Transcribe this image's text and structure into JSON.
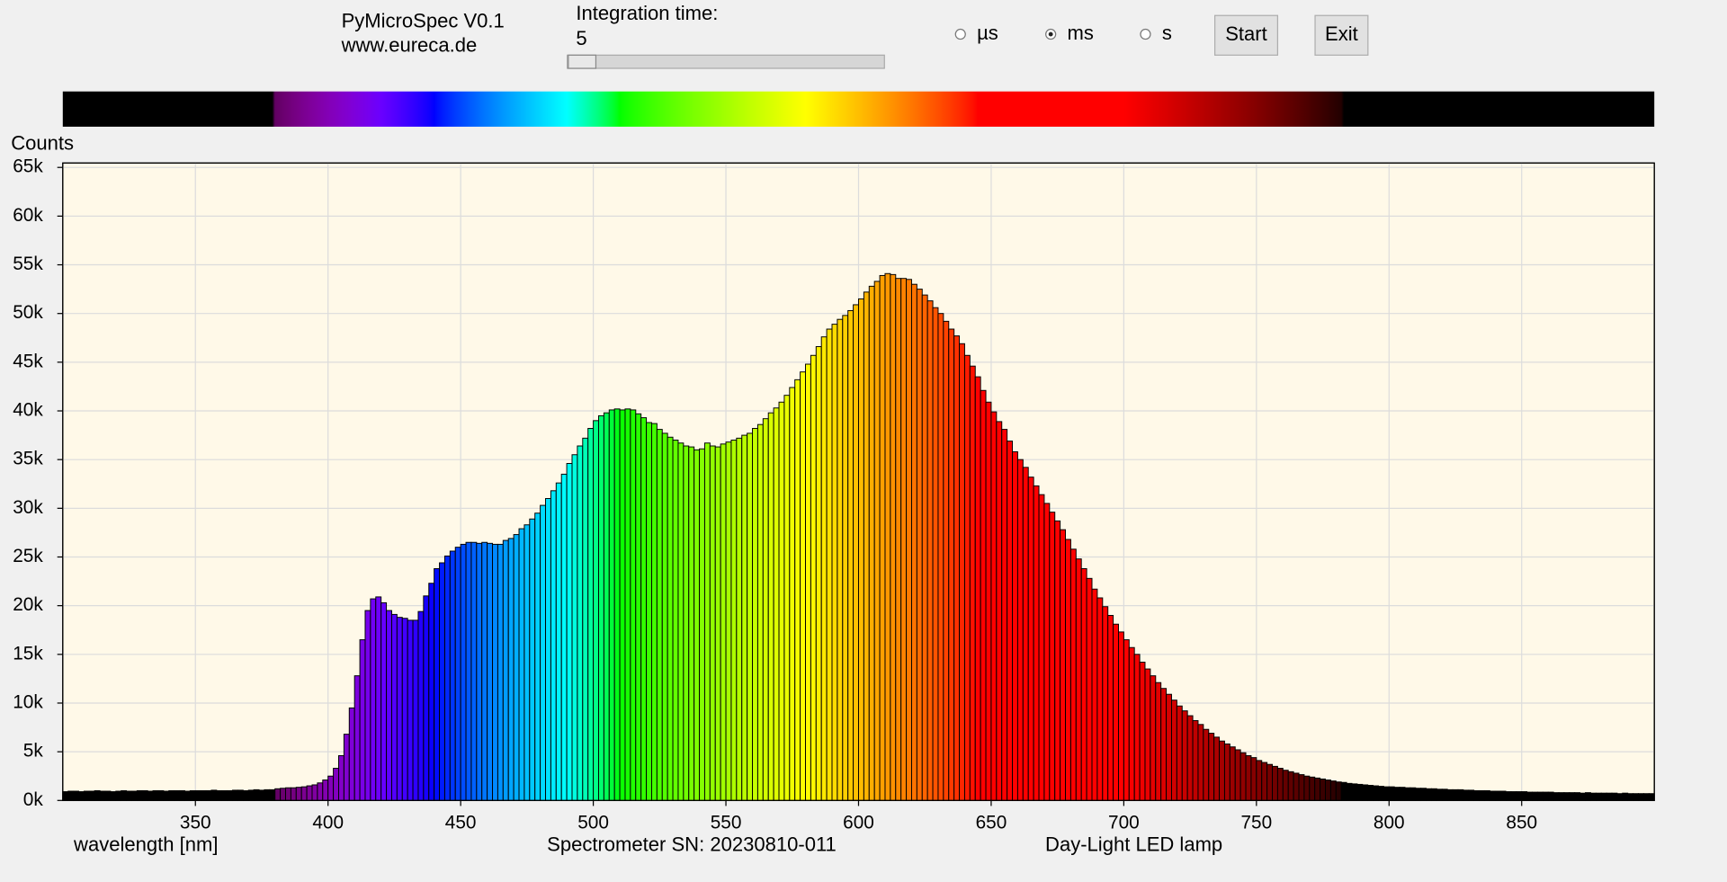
{
  "header": {
    "app_name": "PyMicroSpec V0.1",
    "website": "www.eureca.de"
  },
  "controls": {
    "integration": {
      "label": "Integration time:",
      "value": "5"
    },
    "units": [
      {
        "label": "µs"
      },
      {
        "label": "ms",
        "checked": true
      },
      {
        "label": "s"
      }
    ],
    "buttons": [
      "Start",
      "Exit"
    ]
  },
  "chart_data": {
    "type": "bar",
    "y_label": "Counts",
    "x_label": "wavelength [nm]",
    "annotations": [
      "Spectrometer SN: 20230810-011",
      "Day-Light LED lamp"
    ],
    "background": "#fff9e8",
    "grid": true,
    "xlim": [
      300,
      900
    ],
    "xticks": [
      350,
      400,
      450,
      500,
      550,
      600,
      650,
      700,
      750,
      800,
      850
    ],
    "ylim": [
      0,
      65000
    ],
    "yticks": [
      {
        "value": 0,
        "label": "0k"
      },
      {
        "value": 5000,
        "label": "5k"
      },
      {
        "value": 10000,
        "label": "10k"
      },
      {
        "value": 15000,
        "label": "15k"
      },
      {
        "value": 20000,
        "label": "20k"
      },
      {
        "value": 25000,
        "label": "25k"
      },
      {
        "value": 30000,
        "label": "30k"
      },
      {
        "value": 35000,
        "label": "35k"
      },
      {
        "value": 40000,
        "label": "40k"
      },
      {
        "value": 45000,
        "label": "45k"
      },
      {
        "value": 50000,
        "label": "50k"
      },
      {
        "value": 55000,
        "label": "55k"
      },
      {
        "value": 60000,
        "label": "60k"
      },
      {
        "value": 65000,
        "label": "65k"
      }
    ],
    "x": [
      300,
      302,
      304,
      306,
      308,
      310,
      312,
      314,
      316,
      318,
      320,
      322,
      324,
      326,
      328,
      330,
      332,
      334,
      336,
      338,
      340,
      342,
      344,
      346,
      348,
      350,
      352,
      354,
      356,
      358,
      360,
      362,
      364,
      366,
      368,
      370,
      372,
      374,
      376,
      378,
      380,
      382,
      384,
      386,
      388,
      390,
      392,
      394,
      396,
      398,
      400,
      402,
      404,
      406,
      408,
      410,
      412,
      414,
      416,
      418,
      420,
      422,
      424,
      426,
      428,
      430,
      432,
      434,
      436,
      438,
      440,
      442,
      444,
      446,
      448,
      450,
      452,
      454,
      456,
      458,
      460,
      462,
      464,
      466,
      468,
      470,
      472,
      474,
      476,
      478,
      480,
      482,
      484,
      486,
      488,
      490,
      492,
      494,
      496,
      498,
      500,
      502,
      504,
      506,
      508,
      510,
      512,
      514,
      516,
      518,
      520,
      522,
      524,
      526,
      528,
      530,
      532,
      534,
      536,
      538,
      540,
      542,
      544,
      546,
      548,
      550,
      552,
      554,
      556,
      558,
      560,
      562,
      564,
      566,
      568,
      570,
      572,
      574,
      576,
      578,
      580,
      582,
      584,
      586,
      588,
      590,
      592,
      594,
      596,
      598,
      600,
      602,
      604,
      606,
      608,
      610,
      612,
      614,
      616,
      618,
      620,
      622,
      624,
      626,
      628,
      630,
      632,
      634,
      636,
      638,
      640,
      642,
      644,
      646,
      648,
      650,
      652,
      654,
      656,
      658,
      660,
      662,
      664,
      666,
      668,
      670,
      672,
      674,
      676,
      678,
      680,
      682,
      684,
      686,
      688,
      690,
      692,
      694,
      696,
      698,
      700,
      702,
      704,
      706,
      708,
      710,
      712,
      714,
      716,
      718,
      720,
      722,
      724,
      726,
      728,
      730,
      732,
      734,
      736,
      738,
      740,
      742,
      744,
      746,
      748,
      750,
      752,
      754,
      756,
      758,
      760,
      762,
      764,
      766,
      768,
      770,
      772,
      774,
      776,
      778,
      780,
      782,
      784,
      786,
      788,
      790,
      792,
      794,
      796,
      798,
      800,
      802,
      804,
      806,
      808,
      810,
      812,
      814,
      816,
      818,
      820,
      822,
      824,
      826,
      828,
      830,
      832,
      834,
      836,
      838,
      840,
      842,
      844,
      846,
      848,
      850,
      852,
      854,
      856,
      858,
      860,
      862,
      864,
      866,
      868,
      870,
      872,
      874,
      876,
      878,
      880,
      882,
      884,
      886,
      888,
      890,
      892,
      894,
      896,
      898
    ],
    "values": [
      900,
      950,
      950,
      900,
      950,
      950,
      1000,
      950,
      950,
      900,
      950,
      1000,
      950,
      950,
      1000,
      1000,
      950,
      1000,
      1000,
      950,
      1000,
      1000,
      1000,
      950,
      1000,
      1000,
      1000,
      1000,
      1050,
      1000,
      1000,
      1000,
      1050,
      1050,
      1000,
      1050,
      1100,
      1050,
      1100,
      1100,
      1200,
      1250,
      1300,
      1300,
      1350,
      1400,
      1500,
      1600,
      1800,
      2100,
      2500,
      3300,
      4600,
      6800,
      9500,
      12800,
      16500,
      19500,
      20700,
      20900,
      20300,
      19500,
      19100,
      18800,
      18700,
      18500,
      18500,
      19400,
      21000,
      22300,
      23800,
      24400,
      25100,
      25600,
      26000,
      26300,
      26500,
      26500,
      26400,
      26500,
      26400,
      26300,
      26300,
      26700,
      26900,
      27300,
      27900,
      28300,
      28900,
      29500,
      30300,
      31000,
      31800,
      32600,
      33500,
      34600,
      35500,
      36400,
      37200,
      38200,
      39000,
      39500,
      39800,
      40100,
      40200,
      40100,
      40200,
      40100,
      39700,
      39300,
      38800,
      38700,
      38100,
      37700,
      37300,
      37000,
      36700,
      36400,
      36300,
      36000,
      36100,
      36700,
      36400,
      36300,
      36600,
      36800,
      37000,
      37200,
      37500,
      37700,
      38200,
      38600,
      39200,
      39800,
      40300,
      40900,
      41600,
      42400,
      43200,
      44000,
      44800,
      45700,
      46600,
      47600,
      48400,
      48900,
      49400,
      49800,
      50300,
      50900,
      51500,
      52200,
      52800,
      53300,
      53900,
      54100,
      54000,
      53600,
      53600,
      53500,
      53000,
      52500,
      51900,
      51300,
      50600,
      50000,
      49200,
      48400,
      47700,
      46900,
      45700,
      44600,
      43500,
      42100,
      40900,
      39900,
      38900,
      38100,
      36900,
      35800,
      35000,
      34200,
      33200,
      32300,
      31400,
      30500,
      29600,
      28700,
      27800,
      26800,
      25800,
      24800,
      23800,
      22800,
      21700,
      20800,
      19900,
      19000,
      18100,
      17300,
      16500,
      15700,
      15000,
      14200,
      13500,
      12800,
      12100,
      11500,
      10900,
      10300,
      9700,
      9200,
      8700,
      8200,
      7800,
      7300,
      6900,
      6500,
      6100,
      5800,
      5500,
      5200,
      4900,
      4600,
      4400,
      4100,
      3900,
      3700,
      3500,
      3300,
      3100,
      2950,
      2800,
      2650,
      2500,
      2400,
      2300,
      2200,
      2100,
      2000,
      1900,
      1850,
      1750,
      1700,
      1650,
      1600,
      1550,
      1500,
      1450,
      1400,
      1400,
      1350,
      1350,
      1300,
      1300,
      1250,
      1250,
      1200,
      1200,
      1150,
      1150,
      1100,
      1100,
      1100,
      1050,
      1050,
      1000,
      1000,
      1000,
      950,
      950,
      950,
      900,
      900,
      900,
      900,
      850,
      850,
      850,
      850,
      850,
      800,
      800,
      800,
      800,
      800,
      750,
      800,
      750,
      750,
      750,
      750,
      750,
      700,
      750,
      700,
      700,
      700,
      700,
      700
    ]
  }
}
